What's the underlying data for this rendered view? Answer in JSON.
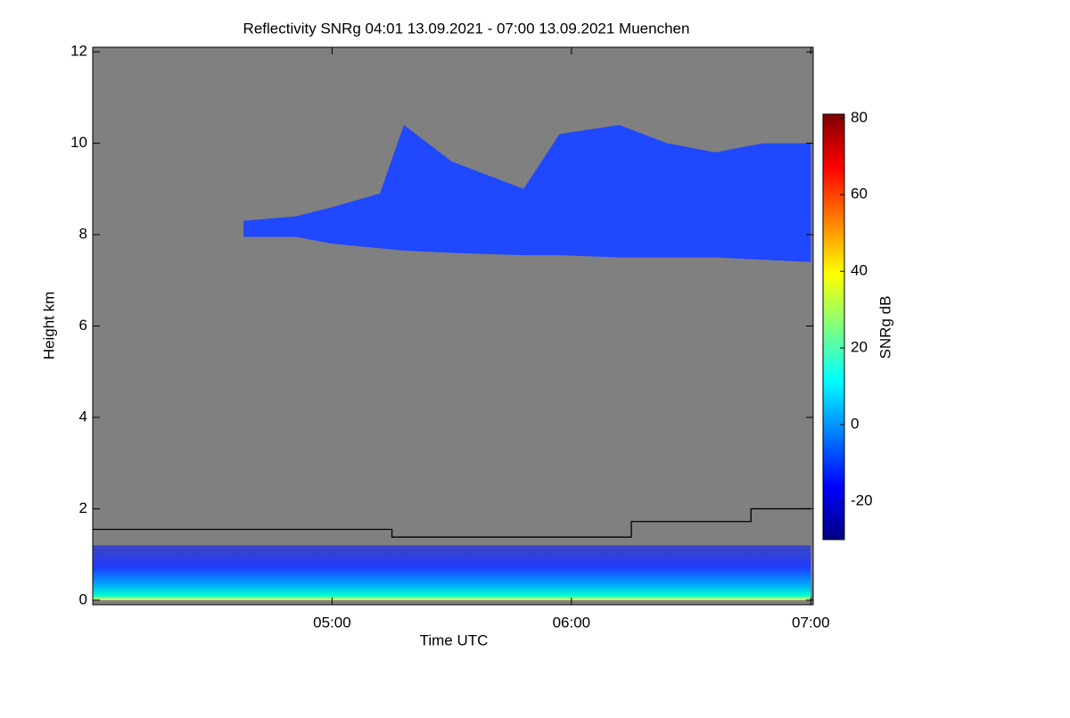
{
  "chart_data": {
    "type": "heatmap",
    "title": "Reflectivity SNRg   04:01 13.09.2021 - 07:00 13.09.2021 Muenchen",
    "x_label": "Time UTC",
    "y_label": "Height km",
    "xlim": [
      4.0,
      7.01
    ],
    "xticks": [
      {
        "value": 5,
        "label": "05:00"
      },
      {
        "value": 6,
        "label": "06:00"
      },
      {
        "value": 7,
        "label": "07:00"
      }
    ],
    "ylim": [
      -0.1,
      12.1
    ],
    "yticks": [
      0,
      2,
      4,
      6,
      8,
      10,
      12
    ],
    "background": "#808080",
    "cloud": {
      "x": [
        4.63,
        4.85,
        5.0,
        5.2,
        5.3,
        5.5,
        5.8,
        5.95,
        6.2,
        6.4,
        6.6,
        6.8,
        7.0
      ],
      "top": [
        8.3,
        8.4,
        8.6,
        8.9,
        10.4,
        9.6,
        9.0,
        10.2,
        10.4,
        10.0,
        9.8,
        10.0,
        10.0
      ],
      "base": [
        7.95,
        7.95,
        7.8,
        7.7,
        7.65,
        7.6,
        7.55,
        7.55,
        7.5,
        7.5,
        7.5,
        7.45,
        7.4
      ],
      "color": "#1f48ff"
    },
    "clutter": {
      "x": [
        4.0,
        7.0
      ],
      "top": [
        1.2,
        1.2
      ],
      "base": [
        0,
        0
      ],
      "color": "#1f3cff"
    },
    "line": {
      "x": [
        4.0,
        5.25,
        5.25,
        6.25,
        6.25,
        6.75,
        6.75,
        7.0
      ],
      "y": [
        1.55,
        1.55,
        1.38,
        1.38,
        1.72,
        1.72,
        2.0,
        2.0
      ],
      "color": "#000000"
    },
    "colorbar": {
      "label": "SNRg dB",
      "clim": [
        -30,
        81
      ],
      "ticks": [
        -20,
        0,
        20,
        40,
        60,
        80
      ],
      "colormap": [
        "#00007f",
        "#0000ff",
        "#007fff",
        "#00ffff",
        "#7fff7f",
        "#ffff00",
        "#ff7f00",
        "#ff0000",
        "#7f0000"
      ]
    }
  }
}
